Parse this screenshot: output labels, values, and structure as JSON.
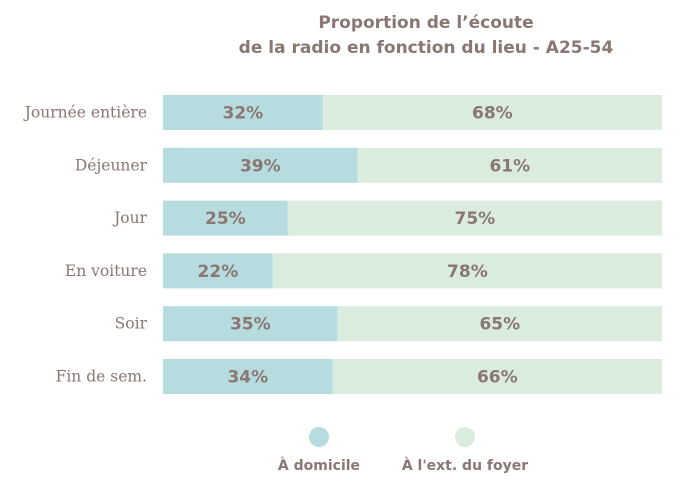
{
  "chart_data": {
    "type": "bar",
    "orientation": "horizontal",
    "stacked": true,
    "title_lines": [
      "Proportion de l’écoute",
      "de la radio en fonction du lieu - A25-54"
    ],
    "categories": [
      "Journée entière",
      "Déjeuner",
      "Jour",
      "En voiture",
      "Soir",
      "Fin de sem."
    ],
    "series": [
      {
        "name": "À domicile",
        "color": "#b6dcdf",
        "values": [
          32,
          39,
          25,
          22,
          35,
          34
        ],
        "labels": [
          "32%",
          "39%",
          "25%",
          "22%",
          "35%",
          "34%"
        ]
      },
      {
        "name": "À l'ext. du foyer",
        "color": "#d9ecdd",
        "values": [
          68,
          61,
          75,
          78,
          65,
          66
        ],
        "labels": [
          "68%",
          "61%",
          "75%",
          "78%",
          "65%",
          "66%"
        ]
      }
    ],
    "xlim": [
      0,
      100
    ],
    "grid": false,
    "legend_position": "bottom"
  }
}
